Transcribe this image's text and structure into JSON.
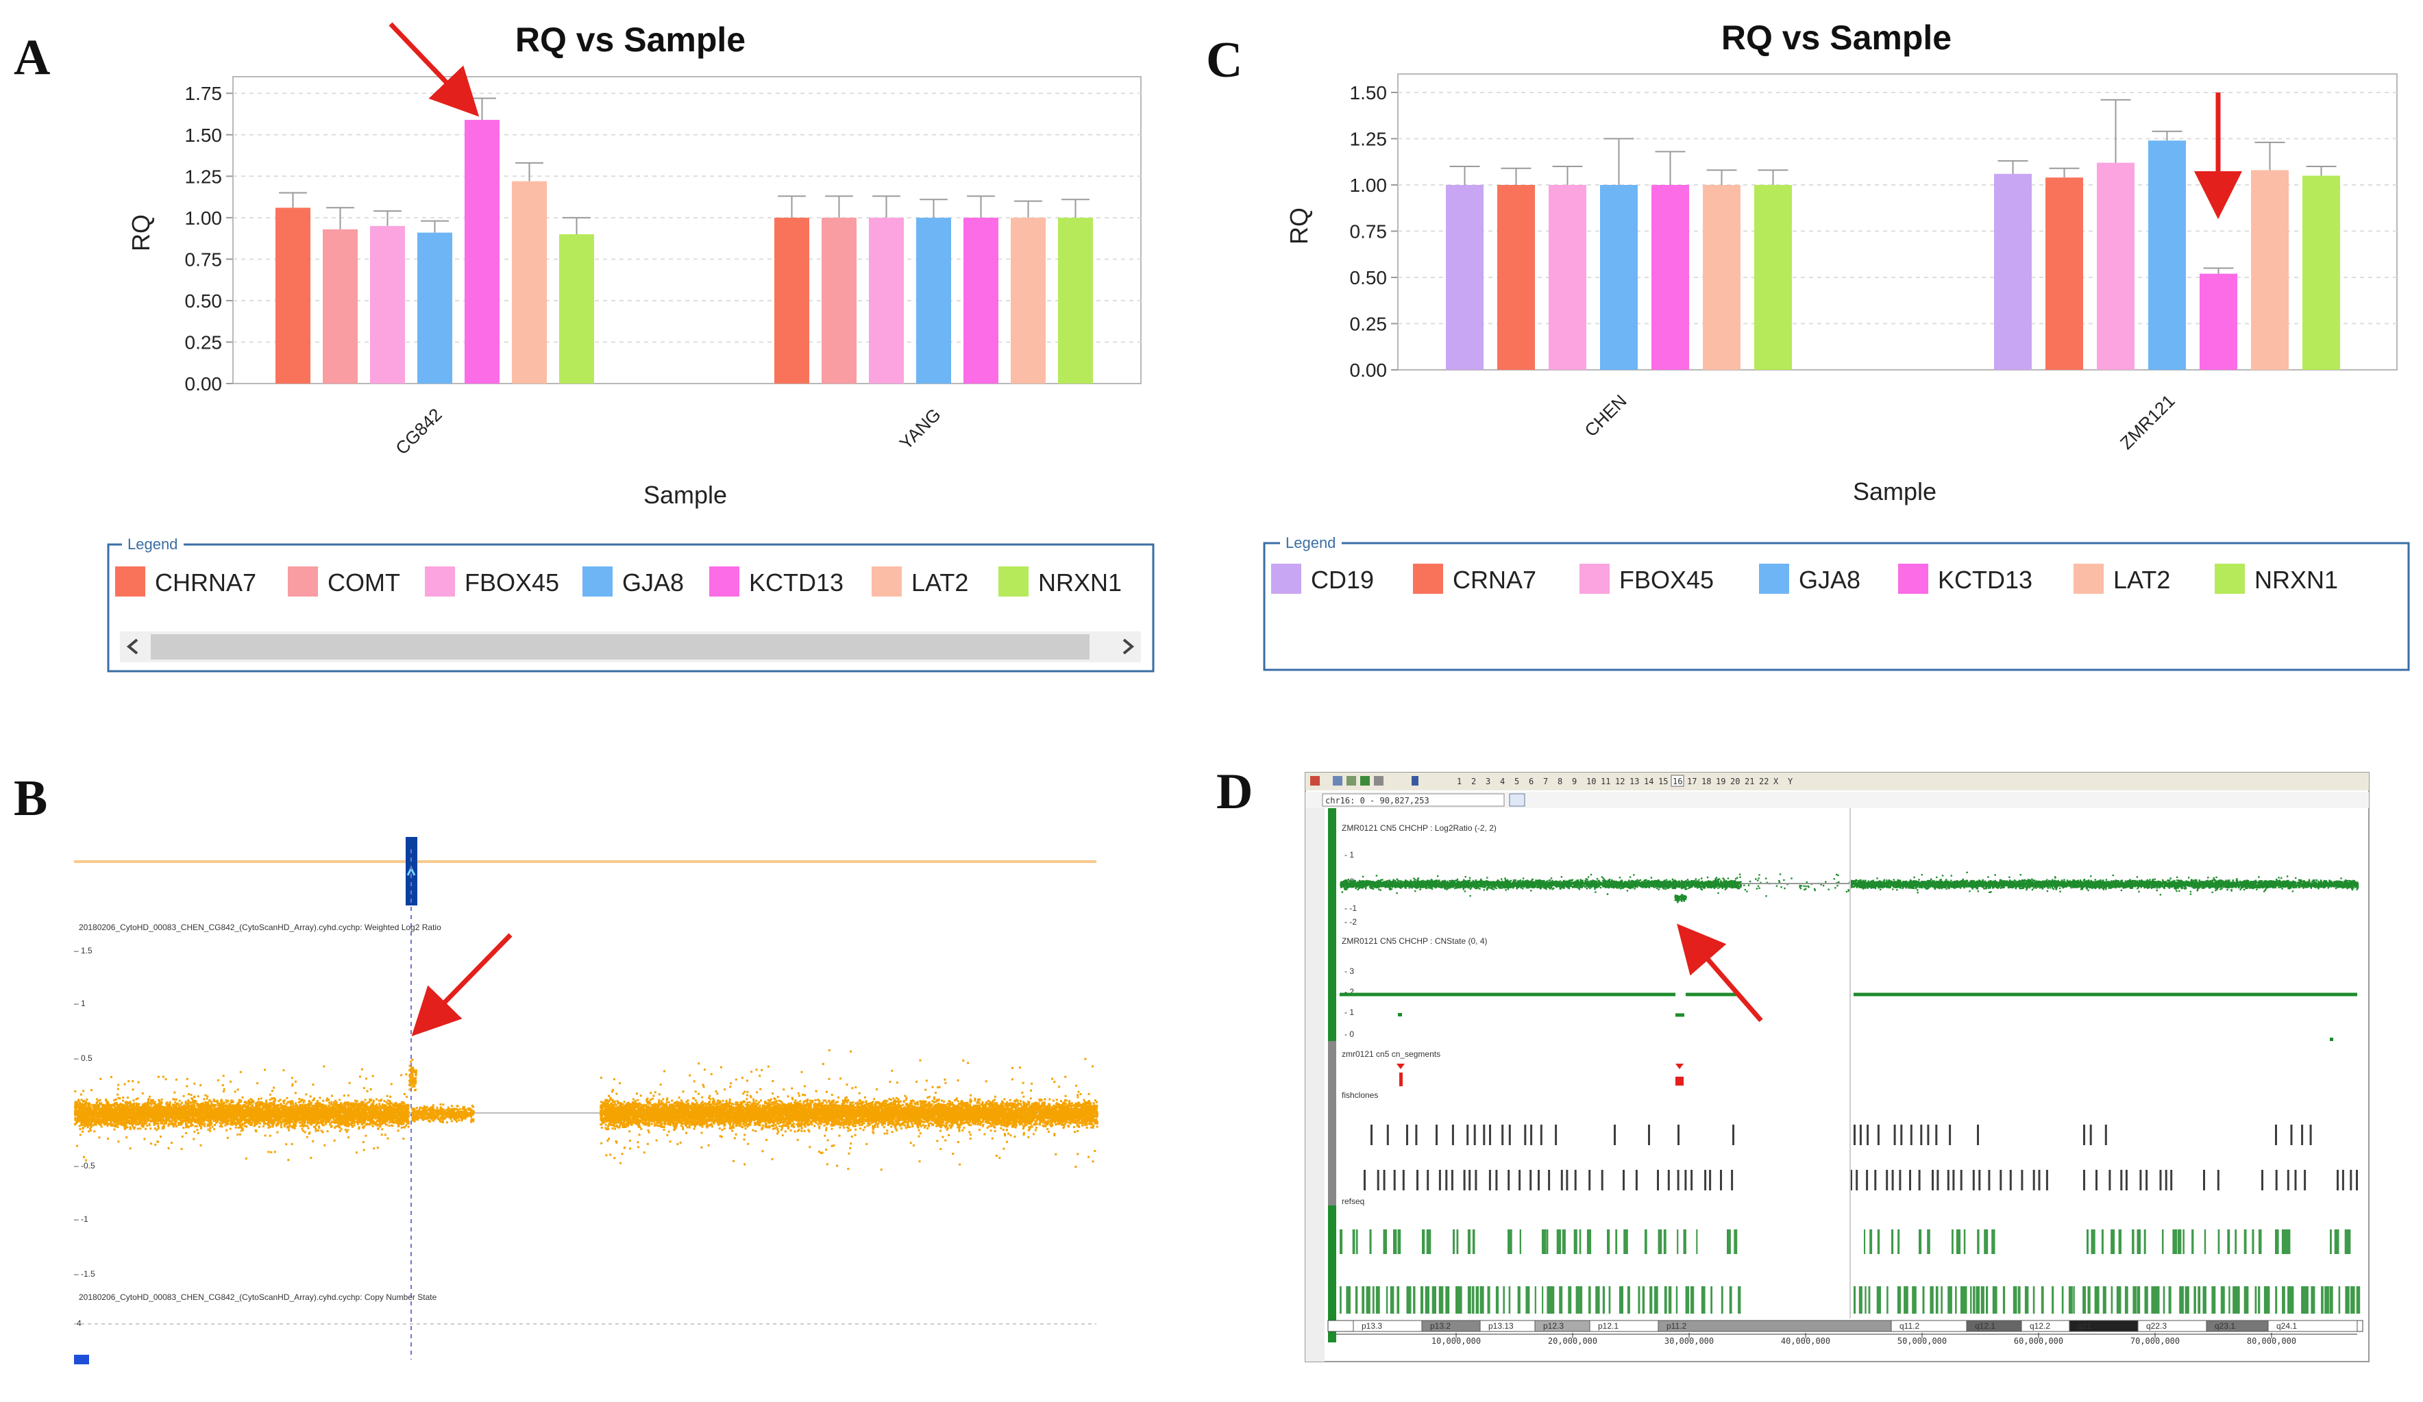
{
  "panel_labels": [
    "A",
    "B",
    "C",
    "D"
  ],
  "chart_data": [
    {
      "panel": "A",
      "type": "bar",
      "title": "RQ vs Sample",
      "xlabel": "Sample",
      "ylabel": "RQ",
      "ylim": [
        0,
        1.85
      ],
      "yticks": [
        "0.00",
        "0.25",
        "0.50",
        "0.75",
        "1.00",
        "1.25",
        "1.50",
        "1.75"
      ],
      "categories": [
        "CG842",
        "YANG"
      ],
      "series": [
        {
          "name": "CHRNA7",
          "color": "#f9735b",
          "values": [
            1.06,
            1.0
          ],
          "errors": [
            0.09,
            0.13
          ]
        },
        {
          "name": "COMT",
          "color": "#f99da3",
          "values": [
            0.93,
            1.0
          ],
          "errors": [
            0.13,
            0.13
          ]
        },
        {
          "name": "FBOX45",
          "color": "#fba4df",
          "values": [
            0.95,
            1.0
          ],
          "errors": [
            0.09,
            0.13
          ]
        },
        {
          "name": "GJA8",
          "color": "#6eb5f5",
          "values": [
            0.91,
            1.0
          ],
          "errors": [
            0.07,
            0.11
          ]
        },
        {
          "name": "KCTD13",
          "color": "#fb6ce6",
          "values": [
            1.59,
            1.0
          ],
          "errors": [
            0.13,
            0.13
          ]
        },
        {
          "name": "LAT2",
          "color": "#fcbda6",
          "values": [
            1.22,
            1.0
          ],
          "errors": [
            0.11,
            0.1
          ]
        },
        {
          "name": "NRXN1",
          "color": "#b6ea5a",
          "values": [
            0.9,
            1.0
          ],
          "errors": [
            0.1,
            0.11
          ]
        }
      ],
      "legend_title": "Legend",
      "annotation": "red arrow pointing to KCTD13 bar of CG842"
    },
    {
      "panel": "C",
      "type": "bar",
      "title": "RQ vs Sample",
      "xlabel": "Sample",
      "ylabel": "RQ",
      "ylim": [
        0,
        1.6
      ],
      "yticks": [
        "0.00",
        "0.25",
        "0.50",
        "0.75",
        "1.00",
        "1.25",
        "1.50"
      ],
      "categories": [
        "CHEN",
        "ZMR121"
      ],
      "series": [
        {
          "name": "CD19",
          "color": "#c9a6f3",
          "values": [
            1.0,
            1.06
          ],
          "errors": [
            0.1,
            0.07
          ]
        },
        {
          "name": "CRNA7",
          "color": "#f9735b",
          "values": [
            1.0,
            1.04
          ],
          "errors": [
            0.09,
            0.05
          ]
        },
        {
          "name": "FBOX45",
          "color": "#fba4df",
          "values": [
            1.0,
            1.12
          ],
          "errors": [
            0.1,
            0.34
          ]
        },
        {
          "name": "GJA8",
          "color": "#6eb5f5",
          "values": [
            1.0,
            1.24
          ],
          "errors": [
            0.25,
            0.05
          ]
        },
        {
          "name": "KCTD13",
          "color": "#fb6ce6",
          "values": [
            1.0,
            0.52
          ],
          "errors": [
            0.18,
            0.03
          ]
        },
        {
          "name": "LAT2",
          "color": "#fcbda6",
          "values": [
            1.0,
            1.08
          ],
          "errors": [
            0.08,
            0.15
          ]
        },
        {
          "name": "NRXN1",
          "color": "#b6ea5a",
          "values": [
            1.0,
            1.05
          ],
          "errors": [
            0.08,
            0.05
          ]
        }
      ],
      "legend_title": "Legend",
      "annotation": "red arrow pointing to KCTD13 bar of ZMR121"
    },
    {
      "panel": "B",
      "type": "scatter",
      "description_labels": {
        "track1": "20180206_CytoHD_00083_CHEN_CG842_(CytoScanHD_Array).cyhd.cychp: Weighted Log2 Ratio",
        "track2": "20180206_CytoHD_00083_CHEN_CG842_(CytoScanHD_Array).cyhd.cychp: Copy Number State"
      },
      "yticks": [
        "1.5",
        "1",
        "0.5",
        "-0.5",
        "-1",
        "-1.5"
      ],
      "bottom_tick": "4",
      "color": "#f5a300",
      "annotation": "red arrow pointing to elevated log2 ratio segment"
    },
    {
      "panel": "D",
      "type": "scatter",
      "toolbar_chromosomes": [
        "1",
        "2",
        "3",
        "4",
        "5",
        "6",
        "7",
        "8",
        "9",
        "10",
        "11",
        "12",
        "13",
        "14",
        "15",
        "16",
        "17",
        "18",
        "19",
        "20",
        "21",
        "22",
        "X",
        "Y"
      ],
      "selected_chromosome": "16",
      "location": "chr16: 0 - 90,827,253",
      "track_labels": {
        "log2": "ZMR0121 CN5 CHCHP : Log2Ratio (-2, 2)",
        "cnstate": "ZMR0121 CN5 CHCHP : CNState (0, 4)",
        "segments": "zmr0121 cn5 cn_segments",
        "clones": "fishclones",
        "refseq": "refseq"
      },
      "log2_ticks": [
        "1",
        "0",
        "-1",
        "-2"
      ],
      "cn_ticks": [
        "3",
        "2",
        "1",
        "0"
      ],
      "bands": [
        "p13.3",
        "p13.2",
        "p13.13",
        "p12.3",
        "p12.1",
        "p11.2",
        "q11.2",
        "q12.1",
        "q12.2",
        "q21",
        "q22.3",
        "q23.1",
        "q24.1"
      ],
      "ruler": [
        "10,000,000",
        "20,000,000",
        "30,000,000",
        "40,000,000",
        "50,000,000",
        "60,000,000",
        "70,000,000",
        "80,000,000"
      ],
      "color": "#1e8c2c",
      "annotation": "red arrow pointing to loss segment"
    }
  ]
}
